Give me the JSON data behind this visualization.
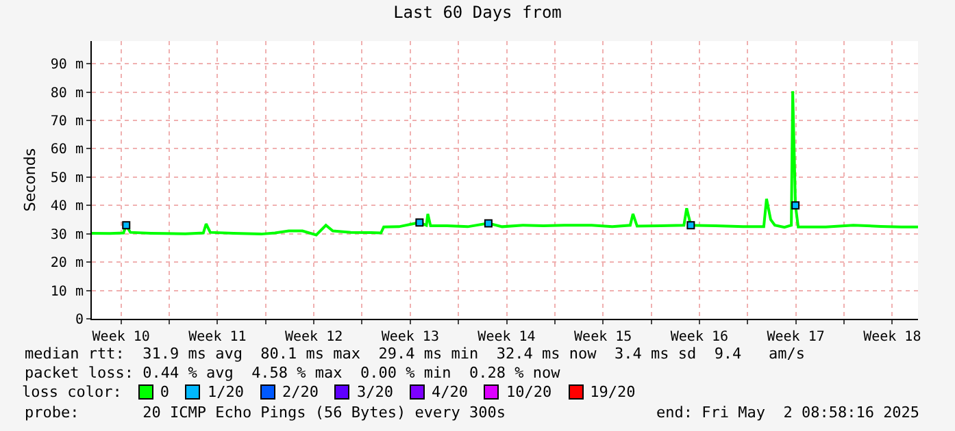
{
  "chart_data": {
    "type": "line",
    "title": "Last 60 Days from",
    "ylabel": "Seconds",
    "x": [
      "2025-03-03T09:00",
      "2025-03-04T16:12",
      "2025-03-05T16:12",
      "2025-03-05T21:00",
      "2025-03-06T04:12",
      "2025-03-07T16:12",
      "2025-03-08T16:12",
      "2025-03-10T04:12",
      "2025-03-11T11:24",
      "2025-03-11T16:12",
      "2025-03-11T23:24",
      "2025-03-13T16:12",
      "2025-03-15T16:12",
      "2025-03-16T16:12",
      "2025-03-17T16:12",
      "2025-03-18T16:12",
      "2025-03-19T16:12",
      "2025-03-20T09:00",
      "2025-03-20T21:00",
      "2025-03-22T04:12",
      "2025-03-23T16:12",
      "2025-03-24T09:00",
      "2025-03-24T13:48",
      "2025-03-25T16:12",
      "2025-03-26T16:12",
      "2025-03-27T04:12",
      "2025-03-27T16:12",
      "2025-03-27T18:36",
      "2025-03-27T23:24",
      "2025-03-29T04:12",
      "2025-03-30T16:12",
      "2025-04-01T04:12",
      "2025-04-02T04:12",
      "2025-04-03T16:12",
      "2025-04-05T04:12",
      "2025-04-06T16:12",
      "2025-04-08T16:12",
      "2025-04-10T04:12",
      "2025-04-11T11:24",
      "2025-04-11T16:12",
      "2025-04-11T23:24",
      "2025-04-13T16:12",
      "2025-04-15T09:00",
      "2025-04-15T13:48",
      "2025-04-15T21:00",
      "2025-04-17T16:12",
      "2025-04-19T16:12",
      "2025-04-21T04:12",
      "2025-04-21T09:00",
      "2025-04-21T16:12",
      "2025-04-21T23:24",
      "2025-04-22T16:12",
      "2025-04-23T04:12",
      "2025-04-23T06:36",
      "2025-04-23T11:24",
      "2025-04-23T16:12",
      "2025-04-25T16:12",
      "2025-04-27T16:12",
      "2025-04-29T16:12",
      "2025-05-01T04:12",
      "2025-05-02T09:00"
    ],
    "series": [
      {
        "name": "0",
        "color": "#00ff00",
        "values": [
          30.2,
          30.1,
          30.3,
          33,
          30.5,
          30.2,
          30.1,
          30,
          30.3,
          33.5,
          30.5,
          30.2,
          29.9,
          30.3,
          31,
          31,
          29.6,
          33,
          31,
          30.5,
          30.4,
          30.3,
          32.4,
          32.5,
          33.5,
          34,
          33,
          37,
          32.8,
          32.8,
          32.5,
          33.7,
          32.5,
          33,
          32.8,
          33,
          33,
          32.5,
          33,
          37,
          32.7,
          32.8,
          33,
          39,
          33,
          32.8,
          32.5,
          32.5,
          42.3,
          35,
          33,
          32.3,
          33,
          80.3,
          40,
          32.4,
          32.4,
          33,
          32.6,
          32.4,
          32.4
        ]
      },
      {
        "name": "1/20",
        "type": "scatter",
        "color": "#00b8ff",
        "x": [
          "2025-03-05T21:00",
          "2025-03-27T04:12",
          "2025-04-01T04:12",
          "2025-04-15T21:00",
          "2025-04-23T11:24"
        ],
        "values": [
          33,
          34,
          33.7,
          33,
          40
        ]
      },
      {
        "name": "2/20",
        "type": "scatter",
        "color": "#0059ff",
        "values": [
          null,
          null,
          null,
          null,
          null,
          null,
          null,
          null,
          null,
          null,
          null,
          null,
          null,
          null,
          null,
          null,
          null,
          null,
          null,
          null,
          null,
          null,
          null,
          null,
          null,
          null,
          null,
          null,
          null,
          null,
          null,
          null,
          null,
          null,
          null,
          null,
          null,
          null,
          null,
          null,
          null,
          null,
          null,
          null,
          null,
          null,
          null,
          null,
          null,
          null,
          null,
          null,
          null,
          null,
          null,
          null,
          null,
          null,
          null,
          null,
          null
        ]
      },
      {
        "name": "3/20",
        "type": "scatter",
        "color": "#5e00ff",
        "values": [
          null,
          null,
          null,
          null,
          null,
          null,
          null,
          null,
          null,
          null,
          null,
          null,
          null,
          null,
          null,
          null,
          null,
          null,
          null,
          null,
          null,
          null,
          null,
          null,
          null,
          null,
          null,
          null,
          null,
          null,
          null,
          null,
          null,
          null,
          null,
          null,
          null,
          null,
          null,
          null,
          null,
          null,
          null,
          null,
          null,
          null,
          null,
          null,
          null,
          null,
          null,
          null,
          null,
          null,
          null,
          null,
          null,
          null,
          null,
          null,
          null
        ]
      },
      {
        "name": "4/20",
        "type": "scatter",
        "color": "#7e00ff",
        "values": [
          null,
          null,
          null,
          null,
          null,
          null,
          null,
          null,
          null,
          null,
          null,
          null,
          null,
          null,
          null,
          null,
          null,
          null,
          null,
          null,
          null,
          null,
          null,
          null,
          null,
          null,
          null,
          null,
          null,
          null,
          null,
          null,
          null,
          null,
          null,
          null,
          null,
          null,
          null,
          null,
          null,
          null,
          null,
          null,
          null,
          null,
          null,
          null,
          null,
          null,
          null,
          null,
          null,
          null,
          null,
          null,
          null,
          null,
          null,
          null,
          null
        ]
      },
      {
        "name": "10/20",
        "type": "scatter",
        "color": "#dd00ff",
        "values": [
          null,
          null,
          null,
          null,
          null,
          null,
          null,
          null,
          null,
          null,
          null,
          null,
          null,
          null,
          null,
          null,
          null,
          null,
          null,
          null,
          null,
          null,
          null,
          null,
          null,
          null,
          null,
          null,
          null,
          null,
          null,
          null,
          null,
          null,
          null,
          null,
          null,
          null,
          null,
          null,
          null,
          null,
          null,
          null,
          null,
          null,
          null,
          null,
          null,
          null,
          null,
          null,
          null,
          null,
          null,
          null,
          null,
          null,
          null,
          null,
          null
        ]
      },
      {
        "name": "19/20",
        "type": "scatter",
        "color": "#ff0000",
        "values": [
          null,
          null,
          null,
          null,
          null,
          null,
          null,
          null,
          null,
          null,
          null,
          null,
          null,
          null,
          null,
          null,
          null,
          null,
          null,
          null,
          null,
          null,
          null,
          null,
          null,
          null,
          null,
          null,
          null,
          null,
          null,
          null,
          null,
          null,
          null,
          null,
          null,
          null,
          null,
          null,
          null,
          null,
          null,
          null,
          null,
          null,
          null,
          null,
          null,
          null,
          null,
          null,
          null,
          null,
          null,
          null,
          null,
          null,
          null,
          null,
          null
        ]
      }
    ],
    "xlim": [
      "2025-03-03T09:00",
      "2025-05-02T09:00"
    ],
    "xticks": [
      {
        "value": "2025-03-05T12:00",
        "label": "Week 10"
      },
      {
        "value": "2025-03-09",
        "label": null
      },
      {
        "value": "2025-03-12T12:00",
        "label": "Week 11"
      },
      {
        "value": "2025-03-16",
        "label": null
      },
      {
        "value": "2025-03-19T12:00",
        "label": "Week 12"
      },
      {
        "value": "2025-03-23",
        "label": null
      },
      {
        "value": "2025-03-26T12:00",
        "label": "Week 13"
      },
      {
        "value": "2025-03-30",
        "label": null
      },
      {
        "value": "2025-04-02T12:00",
        "label": "Week 14"
      },
      {
        "value": "2025-04-06",
        "label": null
      },
      {
        "value": "2025-04-09T12:00",
        "label": "Week 15"
      },
      {
        "value": "2025-04-13",
        "label": null
      },
      {
        "value": "2025-04-16T12:00",
        "label": "Week 16"
      },
      {
        "value": "2025-04-20",
        "label": null
      },
      {
        "value": "2025-04-23T12:00",
        "label": "Week 17"
      },
      {
        "value": "2025-04-27",
        "label": null
      },
      {
        "value": "2025-04-30T12:00",
        "label": "Week 18"
      }
    ],
    "ylim": [
      0,
      98
    ],
    "yticks": [
      0,
      {
        "value": 10,
        "label": "10 m"
      },
      {
        "value": 20,
        "label": "20 m"
      },
      {
        "value": 30,
        "label": "30 m"
      },
      {
        "value": 40,
        "label": "40 m"
      },
      {
        "value": 50,
        "label": "50 m"
      },
      {
        "value": 60,
        "label": "60 m"
      },
      {
        "value": 70,
        "label": "70 m"
      },
      {
        "value": 80,
        "label": "80 m"
      },
      {
        "value": 90,
        "label": "90 m"
      }
    ],
    "grid": true,
    "legend": "bottom",
    "legend_title": "loss color:",
    "annotations": [
      "median rtt:  31.9 ms avg  80.1 ms max  29.4 ms min  32.4 ms now  3.4 ms sd  9.4   am/s",
      "packet loss: 0.44 % avg  4.58 % max  0.00 % min  0.28 % now",
      "probe:       20 ICMP Echo Pings (56 Bytes) every 300s",
      "end: Fri May  2 08:58:16 2025"
    ]
  }
}
